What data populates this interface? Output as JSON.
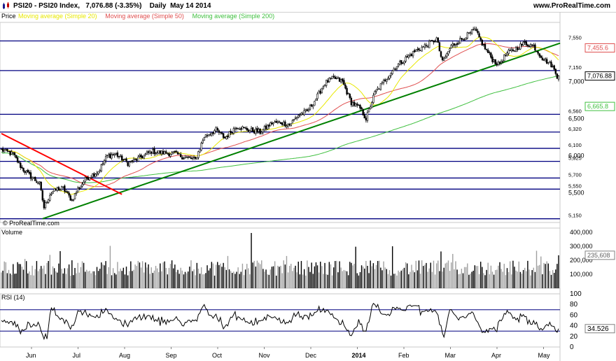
{
  "header": {
    "title": "PSI20 - PSI20 Index",
    "last": "7,076.88",
    "change": "(-3.35%)",
    "period": "Daily",
    "date": "May 14 2014",
    "site": "www.ProRealTime.com"
  },
  "watermark": "© ProRealTime.com",
  "price_panel": {
    "label": "Price",
    "legend": [
      {
        "text": "Moving average (Simple 20)",
        "color": "#e8e800"
      },
      {
        "text": "Moving average (Simple 50)",
        "color": "#e05050"
      },
      {
        "text": "Moving average (Simple 200)",
        "color": "#40c040"
      }
    ],
    "last_badges": [
      {
        "text": "7,455.6",
        "color": "#e05050",
        "value": 7455.6
      },
      {
        "text": "7,076.88",
        "color": "#000000",
        "value": 7076.88
      },
      {
        "text": "6,665.8",
        "color": "#40c040",
        "value": 6665.8
      }
    ]
  },
  "volume_panel": {
    "label": "Volume",
    "badge": "235,608",
    "badge_value": 235608
  },
  "rsi_panel": {
    "label": "RSI (14)",
    "badge": "34.526",
    "badge_value": 34.526
  },
  "colors": {
    "hline": "#000080",
    "trend_up": "#008000",
    "trend_down": "#ff0000",
    "ma20": "#e8e800",
    "ma50": "#e05050",
    "ma200": "#40c040",
    "candle": "#000000",
    "volume_black": "#000000",
    "volume_gray": "#a0a0a0",
    "rsi_line": "#000000",
    "rsi_fill": "#c06060"
  },
  "chart_data": {
    "type": "candlestick",
    "x_axis_labels": [
      "Jun",
      "Jul",
      "Aug",
      "Sep",
      "Oct",
      "Nov",
      "Dec",
      "2014",
      "Feb",
      "Mar",
      "Apr",
      "May"
    ],
    "price_axis": {
      "ylim": [
        5100,
        7800
      ],
      "ticks": [
        {
          "label": "7,550",
          "value": 7550,
          "line": true
        },
        {
          "label": "7,150",
          "value": 7150,
          "line": true
        },
        {
          "label": "7,000",
          "value": 7000,
          "line": false
        },
        {
          "label": "6,560",
          "value": 6560,
          "line": true
        },
        {
          "label": "6,500",
          "value": 6500,
          "line": false
        },
        {
          "label": "6,320",
          "value": 6320,
          "line": true
        },
        {
          "label": "6,100",
          "value": 6100,
          "line": true
        },
        {
          "label": "6,000",
          "value": 6000,
          "line": false
        },
        {
          "label": "5,925",
          "value": 5925,
          "line": true
        },
        {
          "label": "5,700",
          "value": 5700,
          "line": true
        },
        {
          "label": "5,550",
          "value": 5550,
          "line": true
        },
        {
          "label": "5,500",
          "value": 5500,
          "line": false
        },
        {
          "label": "5,150",
          "value": 5150,
          "line": true
        }
      ],
      "extra_label": "7,550"
    },
    "price_close_keypoints": [
      [
        0,
        6080
      ],
      [
        8,
        6020
      ],
      [
        14,
        5830
      ],
      [
        20,
        5720
      ],
      [
        26,
        5620
      ],
      [
        29,
        5300
      ],
      [
        33,
        5480
      ],
      [
        38,
        5550
      ],
      [
        42,
        5560
      ],
      [
        48,
        5400
      ],
      [
        52,
        5550
      ],
      [
        58,
        5700
      ],
      [
        66,
        5790
      ],
      [
        72,
        6000
      ],
      [
        78,
        6020
      ],
      [
        86,
        5900
      ],
      [
        94,
        5970
      ],
      [
        102,
        6060
      ],
      [
        110,
        6040
      ],
      [
        118,
        6030
      ],
      [
        124,
        5980
      ],
      [
        132,
        5950
      ],
      [
        138,
        6260
      ],
      [
        146,
        6350
      ],
      [
        152,
        6240
      ],
      [
        160,
        6400
      ],
      [
        168,
        6350
      ],
      [
        176,
        6320
      ],
      [
        184,
        6440
      ],
      [
        190,
        6450
      ],
      [
        196,
        6420
      ],
      [
        202,
        6550
      ],
      [
        208,
        6600
      ],
      [
        214,
        6770
      ],
      [
        220,
        6980
      ],
      [
        226,
        7050
      ],
      [
        232,
        7000
      ],
      [
        238,
        6720
      ],
      [
        244,
        6640
      ],
      [
        248,
        6500
      ],
      [
        254,
        6850
      ],
      [
        260,
        7000
      ],
      [
        268,
        7200
      ],
      [
        276,
        7330
      ],
      [
        282,
        7420
      ],
      [
        290,
        7500
      ],
      [
        296,
        7580
      ],
      [
        300,
        7260
      ],
      [
        306,
        7480
      ],
      [
        312,
        7560
      ],
      [
        318,
        7640
      ],
      [
        322,
        7700
      ],
      [
        328,
        7480
      ],
      [
        334,
        7300
      ],
      [
        338,
        7230
      ],
      [
        344,
        7380
      ],
      [
        350,
        7450
      ],
      [
        356,
        7520
      ],
      [
        362,
        7480
      ],
      [
        368,
        7320
      ],
      [
        374,
        7230
      ],
      [
        378,
        7076.88
      ]
    ],
    "trend_lines": [
      {
        "name": "uptrend",
        "from": {
          "index": 28,
          "price": 5150
        },
        "to": {
          "index": 380,
          "price": 7520
        }
      },
      {
        "name": "downtrend",
        "from": {
          "index": 0,
          "price": 6300
        },
        "to": {
          "index": 82,
          "price": 5480
        }
      }
    ],
    "volume_axis": {
      "ylim": [
        0,
        430000
      ],
      "ticks": [
        400000,
        300000,
        200000,
        100000
      ],
      "tick_labels": [
        "400,000",
        "300,000",
        "200,000",
        "100,000"
      ]
    },
    "rsi_axis": {
      "ylim": [
        0,
        100
      ],
      "ticks": [
        100,
        80,
        60,
        40,
        20,
        0
      ],
      "tick_labels": [
        "100",
        "80",
        "60",
        "40",
        "20",
        "0"
      ],
      "overbought": 70,
      "oversold": 30
    }
  }
}
